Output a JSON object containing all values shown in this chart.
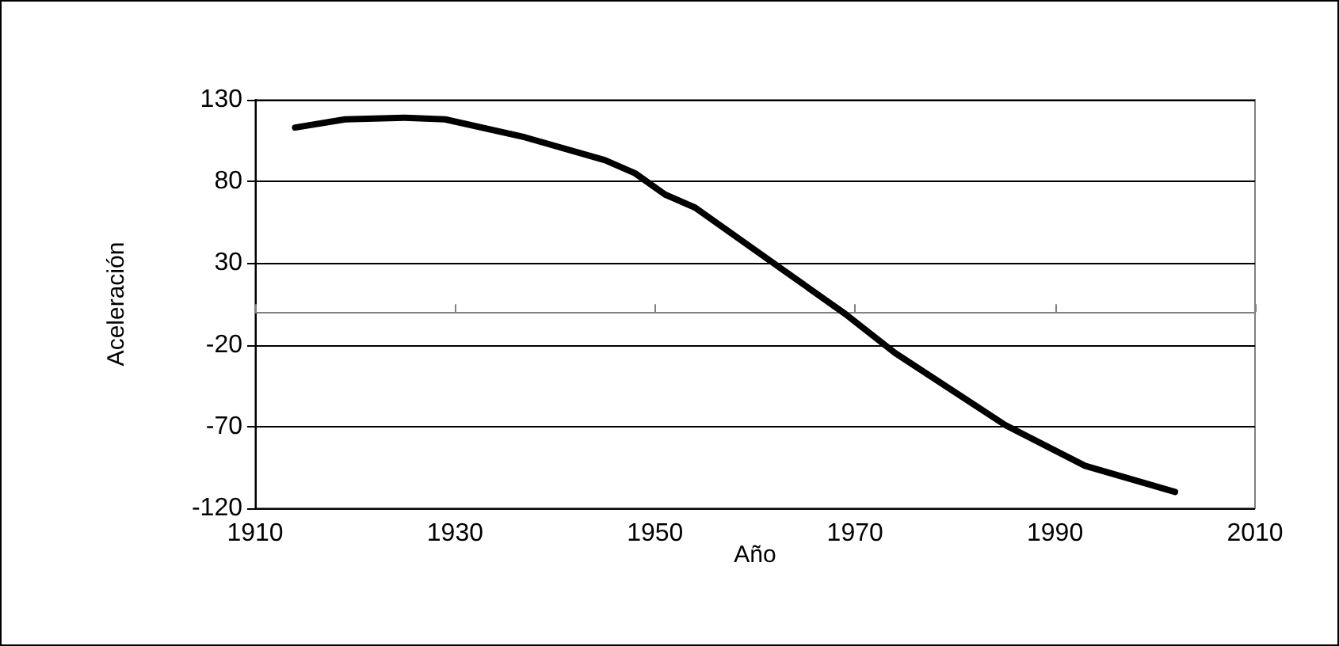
{
  "chart_data": {
    "type": "line",
    "xlabel": "Año",
    "ylabel": "Aceleración",
    "x": [
      1914,
      1919,
      1925,
      1929,
      1937,
      1945,
      1948,
      1951,
      1954,
      1963,
      1969,
      1974,
      1985,
      1993,
      2002
    ],
    "series": [
      {
        "color": "#000000",
        "values": [
          113,
          118,
          119,
          118,
          107,
          93,
          85,
          72,
          64,
          25,
          -1,
          -25,
          -69,
          -94,
          -110
        ]
      }
    ],
    "xlim": [
      1910,
      2010
    ],
    "xticks": [
      1910,
      1930,
      1950,
      1970,
      1990,
      2010
    ],
    "ylim": [
      -120,
      130
    ],
    "yticks": [
      -120,
      -70,
      -20,
      30,
      80,
      130
    ],
    "grid": "y",
    "marker": "none",
    "line_style": "solid"
  }
}
